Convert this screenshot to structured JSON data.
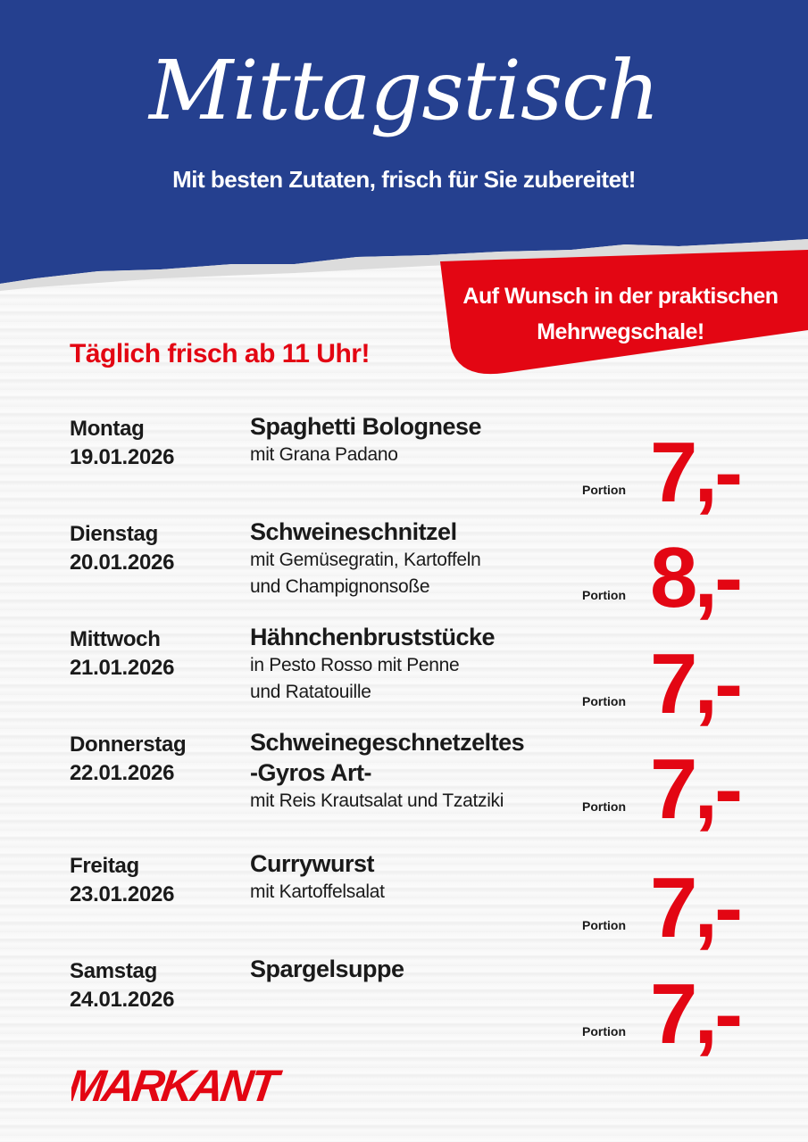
{
  "header": {
    "title": "Mittagstisch",
    "subtitle": "Mit besten Zutaten, frisch für Sie zubereitet!"
  },
  "banner": {
    "line1": "Auf Wunsch in der praktischen",
    "line2": "Mehrwegschale!"
  },
  "daily_note": "Täglich frisch ab 11 Uhr!",
  "menu": [
    {
      "day": "Montag",
      "date": "19.01.2026",
      "title": "Spaghetti Bolognese",
      "title2": "",
      "desc1": "mit Grana Padano",
      "desc2": "",
      "portion": "Portion",
      "price": "7,-"
    },
    {
      "day": "Dienstag",
      "date": "20.01.2026",
      "title": "Schweineschnitzel",
      "title2": "",
      "desc1": "mit Gemüsegratin, Kartoffeln",
      "desc2": "und Champignonsoße",
      "portion": "Portion",
      "price": "8,-"
    },
    {
      "day": "Mittwoch",
      "date": "21.01.2026",
      "title": "Hähnchenbruststücke",
      "title2": "",
      "desc1": "in Pesto Rosso mit Penne",
      "desc2": "und Ratatouille",
      "portion": "Portion",
      "price": "7,-"
    },
    {
      "day": "Donnerstag",
      "date": "22.01.2026",
      "title": "Schweinegeschnetzeltes",
      "title2": "-Gyros Art-",
      "desc1": "mit Reis Krautsalat und Tzatziki",
      "desc2": "",
      "portion": "Portion",
      "price": "7,-"
    },
    {
      "day": "Freitag",
      "date": "23.01.2026",
      "title": "Currywurst",
      "title2": "",
      "desc1": "mit Kartoffelsalat",
      "desc2": "",
      "portion": "Portion",
      "price": "7,-"
    },
    {
      "day": "Samstag",
      "date": "24.01.2026",
      "title": "Spargelsuppe",
      "title2": "",
      "desc1": "",
      "desc2": "",
      "portion": "Portion",
      "price": "7,-"
    }
  ],
  "logo": {
    "text": "MARKANT"
  },
  "colors": {
    "blue": "#25408f",
    "red": "#e30613"
  }
}
